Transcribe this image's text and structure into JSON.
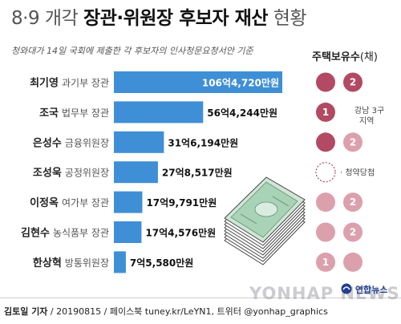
{
  "header": {
    "title_prefix": "8·9 개각 ",
    "title_main": "장관·위원장 후보자 재산",
    "title_suffix": " 현황",
    "subtitle": "청와대가 14일 국회에 제출한 각 후보자의 인사청문요청서안 기준"
  },
  "legend": {
    "title": "주택보유수",
    "title_paren": "(채)"
  },
  "colors": {
    "bar": "#3f8fd6",
    "bar_text_inside": "#ffffff",
    "bar_text_outside": "#111111",
    "house_owned": "#b14a62",
    "house_second": "#dca0ad",
    "circle_text": "#ffffff",
    "agency": "#233f8f"
  },
  "chart_data": {
    "type": "bar",
    "orientation": "horizontal",
    "unit": "만원",
    "categories": [
      "최기영 과기부 장관",
      "조국 법무부 장관",
      "은성수 금융위원장",
      "조성욱 공정위원장",
      "이정옥 여가부 장관",
      "김현수 농식품부 장관",
      "한상혁 방통위원장"
    ],
    "values": [
      1064720,
      564244,
      316194,
      278517,
      179791,
      174576,
      75580
    ],
    "rows": [
      {
        "name": "최기영",
        "title": "과기부 장관",
        "value": 1064720,
        "value_label": "106억4,720만원",
        "houses": {
          "count": 2,
          "count_label": "2"
        },
        "note": ""
      },
      {
        "name": "조국",
        "title": "법무부 장관",
        "value": 564244,
        "value_label": "56억4,244만원",
        "houses": {
          "count": 1,
          "count_label": "1"
        },
        "note": "강남 3구\n지역"
      },
      {
        "name": "은성수",
        "title": "금융위원장",
        "value": 316194,
        "value_label": "31억6,194만원",
        "houses": {
          "count": 2,
          "count_label": "2"
        },
        "note": ""
      },
      {
        "name": "조성욱",
        "title": "공정위원장",
        "value": 278517,
        "value_label": "27억8,517만원",
        "houses": {
          "count": 0,
          "count_label": ""
        },
        "note": "청약당첨"
      },
      {
        "name": "이정옥",
        "title": "여가부 장관",
        "value": 179791,
        "value_label": "17억9,791만원",
        "houses": {
          "count": 2,
          "count_label": "2"
        },
        "note": ""
      },
      {
        "name": "김현수",
        "title": "농식품부 장관",
        "value": 174576,
        "value_label": "17억4,576만원",
        "houses": {
          "count": 2,
          "count_label": "2"
        },
        "note": ""
      },
      {
        "name": "한상혁",
        "title": "방통위원장",
        "value": 75580,
        "value_label": "7억5,580만원",
        "houses": {
          "count": 1,
          "count_label": "1"
        },
        "note": ""
      }
    ],
    "house_legend_marks": [
      {
        "row": 0,
        "owned": 1,
        "second_label": "2"
      },
      {
        "row": 1,
        "owned": 1,
        "second_label": ""
      },
      {
        "row": 2,
        "owned": 1,
        "second_label": "2"
      },
      {
        "row": 3,
        "owned": 0,
        "second_label": ""
      },
      {
        "row": 4,
        "owned": 0,
        "second_label": "2"
      },
      {
        "row": 5,
        "owned": 0,
        "second_label": "2"
      },
      {
        "row": 6,
        "owned": 0,
        "second_label": "1"
      }
    ]
  },
  "footer": {
    "author": "김토일 기자",
    "credit": " / 20190815 / 페이스북 tuney.kr/LeYN1, 트위터 @yonhap_graphics",
    "agency": "연합뉴스",
    "watermark": "YONHAP NEWS"
  }
}
